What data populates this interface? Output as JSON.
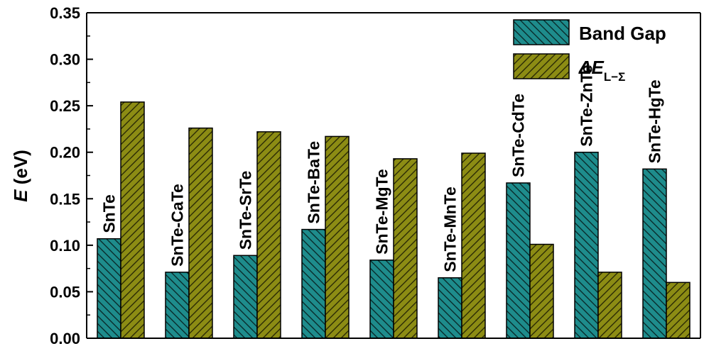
{
  "chart_data": {
    "type": "bar",
    "categories": [
      "SnTe",
      "SnTe-CaTe",
      "SnTe-SrTe",
      "SnTe-BaTe",
      "SnTe-MgTe",
      "SnTe-MnTe",
      "SnTe-CdTe",
      "SnTe-ZnTe",
      "SnTe-HgTe"
    ],
    "series": [
      {
        "name": "Band Gap",
        "values": [
          0.107,
          0.071,
          0.089,
          0.117,
          0.084,
          0.065,
          0.167,
          0.2,
          0.182
        ],
        "color": "#1e8c8c",
        "hatch": "backslash"
      },
      {
        "name": "ΔE L−Σ",
        "values": [
          0.254,
          0.226,
          0.222,
          0.217,
          0.193,
          0.199,
          0.101,
          0.071,
          0.06
        ],
        "color": "#8c8c14",
        "hatch": "slash"
      }
    ],
    "ylim": [
      0,
      0.35
    ],
    "yticks": [
      "0.00",
      "0.05",
      "0.10",
      "0.15",
      "0.20",
      "0.25",
      "0.30",
      "0.35"
    ],
    "ylabel": {
      "symbol": "E",
      "unit": " (eV)"
    },
    "legend": {
      "placement": "top-right",
      "band_gap": "Band Gap",
      "delta_symbol": "ΔE",
      "delta_subscript": "L−Σ"
    },
    "grid": false
  }
}
